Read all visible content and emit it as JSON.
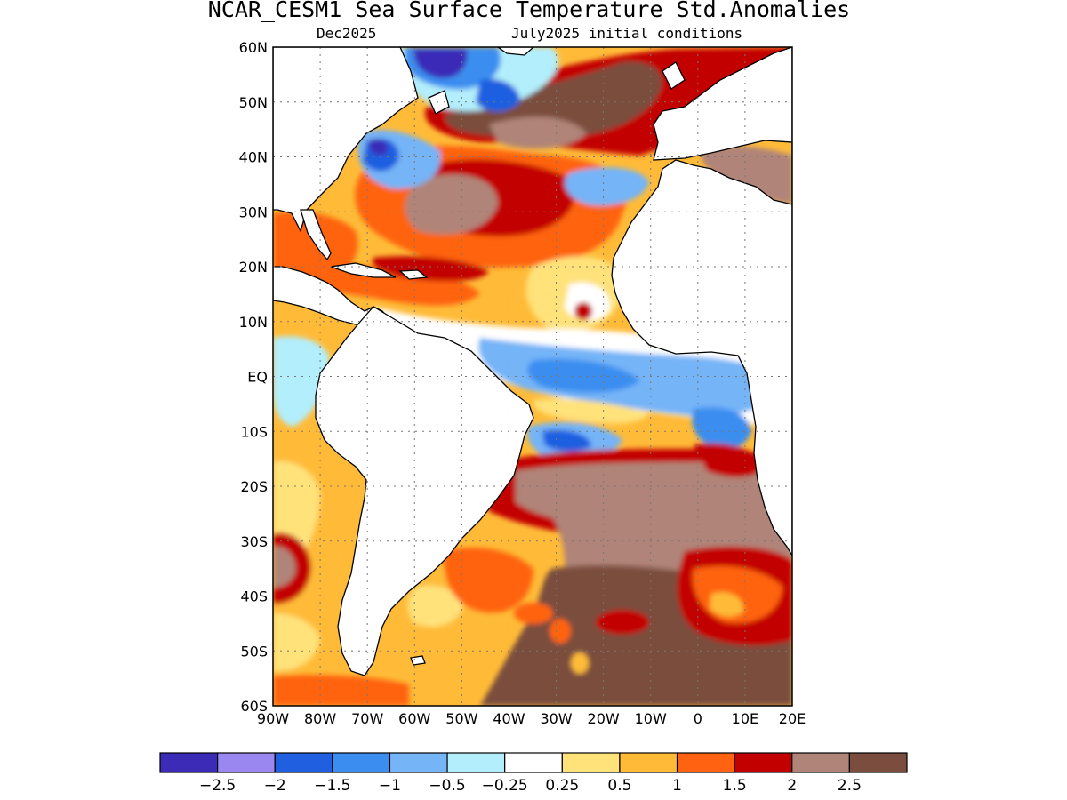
{
  "title": "NCAR_CESM1 Sea Surface Temperature Std.Anomalies",
  "subtitle_left": "Dec2025",
  "subtitle_right": "July2025 initial conditions",
  "map": {
    "lon_range": [
      -90,
      20
    ],
    "lat_range": [
      -60,
      60
    ],
    "lat_labels": [
      "60N",
      "50N",
      "40N",
      "30N",
      "20N",
      "10N",
      "EQ",
      "10S",
      "20S",
      "30S",
      "40S",
      "50S",
      "60S"
    ],
    "lon_labels": [
      "90W",
      "80W",
      "70W",
      "60W",
      "50W",
      "40W",
      "30W",
      "20W",
      "10W",
      "0",
      "10E",
      "20E"
    ],
    "grid": "dotted"
  },
  "colorbar": {
    "colors": [
      "#3b2bb7",
      "#9b87f0",
      "#1f5fe0",
      "#3b8ef0",
      "#74b4f7",
      "#b2eefb",
      "#ffffff",
      "#ffe27a",
      "#ffbb38",
      "#ff6311",
      "#c30000",
      "#b08478",
      "#7a4d3e"
    ],
    "labels": [
      "−2.5",
      "−2",
      "−1.5",
      "−1",
      "−0.5",
      "−0.25",
      "0.25",
      "0.5",
      "1",
      "1.5",
      "2",
      "2.5"
    ]
  }
}
